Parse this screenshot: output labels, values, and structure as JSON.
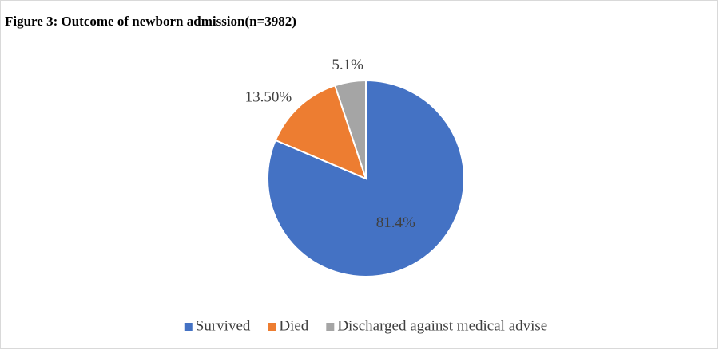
{
  "chart_data": {
    "type": "pie",
    "title": "Figure 3: Outcome of newborn admission(n=3982)",
    "categories": [
      "Survived",
      "Died",
      "Discharged against medical advise"
    ],
    "values": [
      81.4,
      13.5,
      5.1
    ],
    "value_labels": [
      "81.4%",
      "13.50%",
      "5.1%"
    ],
    "colors": [
      "#4472c4",
      "#ed7d31",
      "#a5a5a5"
    ],
    "legend": "bottom"
  }
}
